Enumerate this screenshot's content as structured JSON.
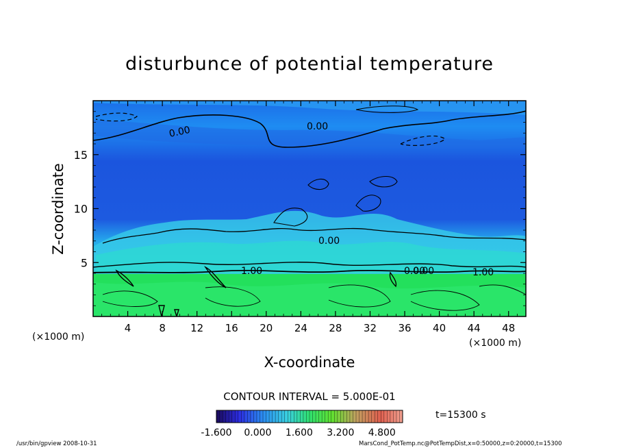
{
  "chart_data": {
    "type": "heatmap",
    "title": "disturbunce of potential temperature",
    "xlabel": "X-coordinate",
    "ylabel": "Z-coordinate",
    "xunit_left": "(×1000 m)",
    "xunit_right": "(×1000 m)",
    "xlim": [
      0,
      50
    ],
    "ylim": [
      0,
      20
    ],
    "xticks": [
      4,
      8,
      12,
      16,
      20,
      24,
      28,
      32,
      36,
      40,
      44,
      48
    ],
    "yticks": [
      5,
      10,
      15
    ],
    "contour_interval": "CONTOUR INTERVAL = 5.000E-01",
    "time_label": "t=15300 s",
    "contour_labels": [
      "0.00",
      "0.00",
      "0.00",
      "0.00",
      "1.00",
      "0.00",
      "1.00"
    ],
    "colorbar": {
      "min": -1.6,
      "max": 5.6,
      "tick_labels": [
        "-1.600",
        "0.000",
        "1.600",
        "3.200",
        "4.800"
      ]
    },
    "regions": [
      {
        "z_range": [
          0,
          4
        ],
        "description_value": 1.0
      },
      {
        "z_range": [
          4,
          8
        ],
        "description_value": 0.0
      },
      {
        "z_range": [
          8,
          20
        ],
        "description_value": -0.5
      }
    ]
  },
  "footer": {
    "left": "/usr/bin/gpview   2008-10-31",
    "right": "MarsCond_PotTemp.nc@PotTempDist,x=0:50000,z=0:20000,t=15300"
  },
  "colors": {
    "deep_blue": "#1f4fe0",
    "mid_blue": "#1e77f0",
    "cyan": "#33d0e8",
    "green": "#1ee06a",
    "dark_green": "#13b84a"
  }
}
